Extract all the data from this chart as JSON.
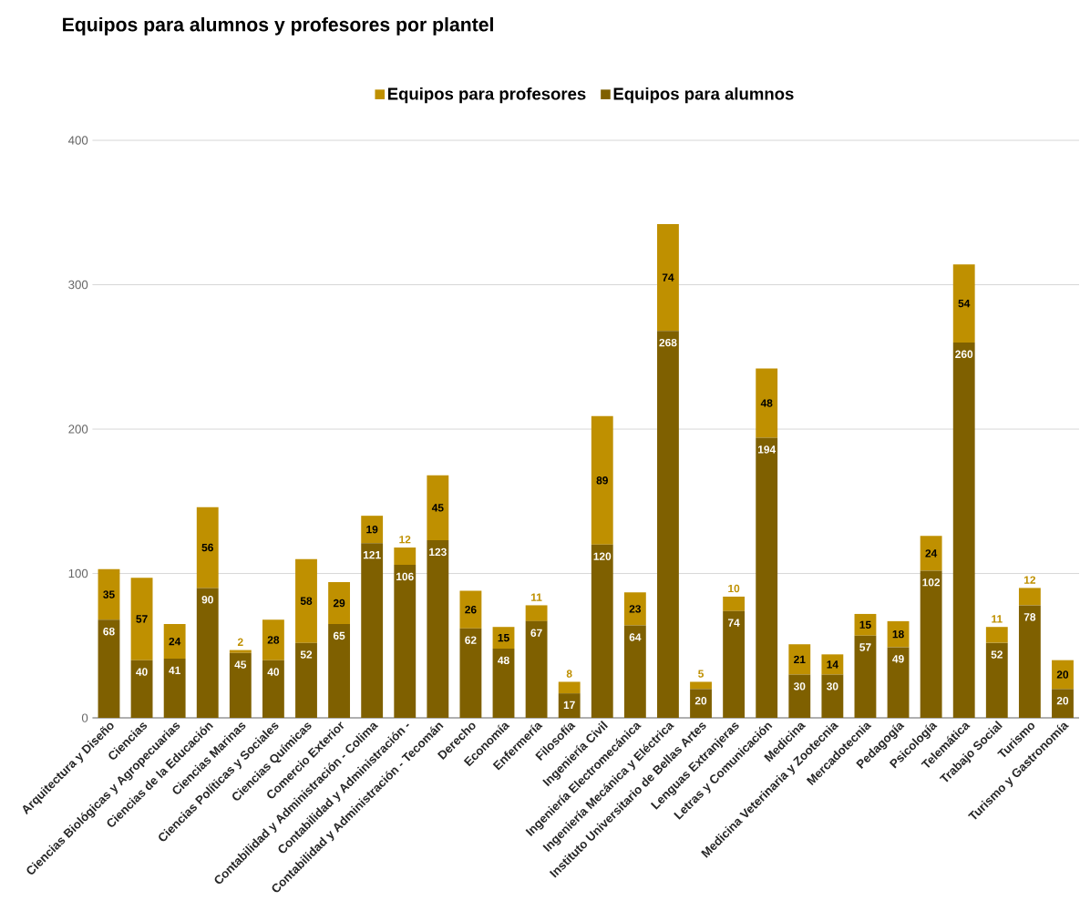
{
  "chart_data": {
    "type": "bar",
    "title": "Equipos para alumnos y profesores por plantel",
    "stacked": true,
    "legend": "top",
    "grid": "y",
    "data_labels": true,
    "categories": [
      "Arquitectura y Diseño",
      "Ciencias",
      "Ciencias Biológicas y Agropecuarias",
      "Ciencias de la Educación",
      "Ciencias Marinas",
      "Ciencias Políticas y Sociales",
      "Ciencias Químicas",
      "Comercio Exterior",
      "Contabilidad y Administración - Colima",
      "Contabilidad y Administración -",
      "Contabilidad y Administración - Tecomán",
      "Derecho",
      "Economía",
      "Enfermería",
      "Filosofía",
      "Ingeniería Civil",
      "Ingeniería Electromecánica",
      "Ingeniería Mecánica y Eléctrica",
      "Instituto Universitario de Bellas Artes",
      "Lenguas Extranjeras",
      "Letras y Comunicación",
      "Medicina",
      "Medicina Veterinaria y Zootecnia",
      "Mercadotecnia",
      "Pedagogía",
      "Psicología",
      "Telemática",
      "Trabajo Social",
      "Turismo",
      "Turismo y Gastronomía"
    ],
    "series": [
      {
        "name": "Equipos para alumnos",
        "color": "#7f6000",
        "values": [
          68,
          40,
          41,
          90,
          45,
          40,
          52,
          65,
          121,
          106,
          123,
          62,
          48,
          67,
          17,
          120,
          64,
          268,
          20,
          74,
          194,
          30,
          30,
          57,
          49,
          102,
          260,
          52,
          78,
          20
        ]
      },
      {
        "name": "Equipos para profesores",
        "color": "#bf9000",
        "values": [
          35,
          57,
          24,
          56,
          2,
          28,
          58,
          29,
          19,
          12,
          45,
          26,
          15,
          11,
          8,
          89,
          23,
          74,
          5,
          10,
          48,
          21,
          14,
          15,
          18,
          24,
          54,
          11,
          12,
          20
        ]
      }
    ],
    "ylim": [
      0,
      400
    ],
    "yticks": [
      0,
      100,
      200,
      300,
      400
    ]
  }
}
